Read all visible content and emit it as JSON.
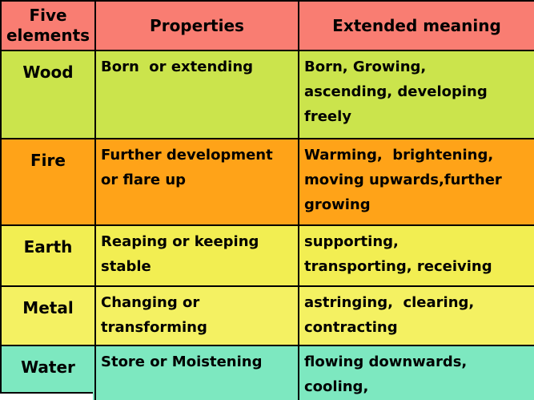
{
  "table": {
    "header": {
      "elements": "Five\nelements",
      "properties": "Properties",
      "meaning": "Extended meaning"
    },
    "rows": [
      {
        "element": "Wood",
        "properties": "Born  or extending",
        "meaning": "Born, Growing,\nascending, developing\nfreely"
      },
      {
        "element": "Fire",
        "properties": "Further development\nor flare up",
        "meaning": "Warming,  brightening,\nmoving upwards,further\ngrowing"
      },
      {
        "element": "Earth",
        "properties": "Reaping or keeping\nstable",
        "meaning": "supporting,\ntransporting, receiving"
      },
      {
        "element": "Metal",
        "properties": "Changing or\ntransforming",
        "meaning": "astringing,  clearing,\ncontracting"
      },
      {
        "element": "Water",
        "properties": "Store or Moistening",
        "meaning": "flowing downwards,\ncooling,"
      }
    ],
    "colors": {
      "header_bg": "#F97D72",
      "row_bg": [
        "#CBE44C",
        "#FFA318",
        "#F2EE52",
        "#F4F162",
        "#7DE8C0"
      ],
      "border": "#000000",
      "text": "#000000"
    }
  }
}
